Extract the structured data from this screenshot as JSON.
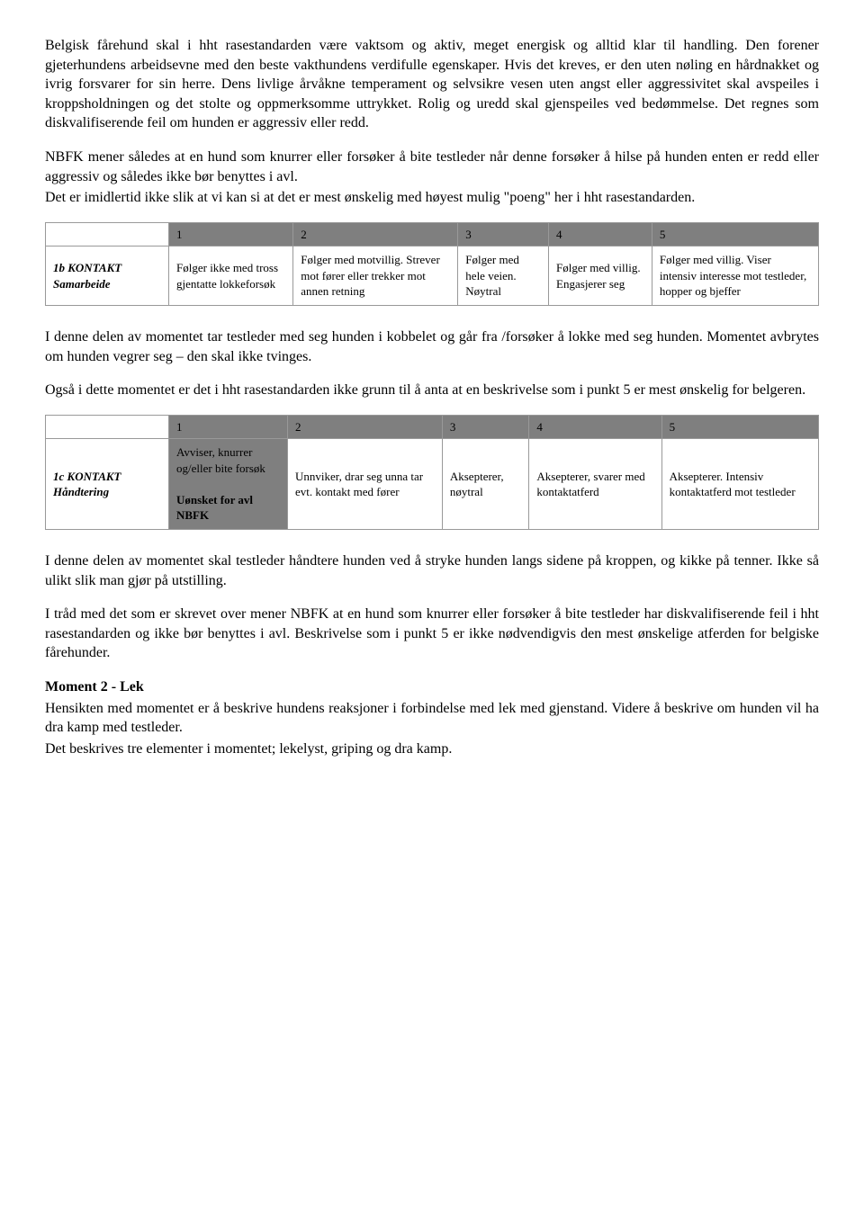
{
  "para1": "Belgisk fårehund skal i hht rasestandarden være vaktsom og aktiv, meget energisk og alltid klar til handling. Den forener gjeterhundens arbeidsevne med den beste vakthundens verdifulle egenskaper. Hvis det kreves, er den uten nøling en hårdnakket og ivrig forsvarer for sin herre. Dens livlige årvåkne temperament og selvsikre vesen uten angst eller aggressivitet skal avspeiles i kroppsholdningen og det stolte og oppmerksomme uttrykket. Rolig og uredd skal gjenspeiles ved bedømmelse. Det regnes som diskvalifiserende feil om hunden er aggressiv eller redd.",
  "para2": "NBFK mener således at en hund som knurrer eller forsøker å bite testleder når denne forsøker å hilse på hunden enten er redd eller aggressiv og således ikke bør benyttes i avl.",
  "para3": "Det er imidlertid ikke slik at vi kan si at det er mest ønskelig med høyest mulig \"poeng\" her i hht rasestandarden.",
  "table1": {
    "headers": [
      "",
      "1",
      "2",
      "3",
      "4",
      "5"
    ],
    "rowLabel": "1b KONTAKT Samarbeide",
    "cells": [
      "Følger ikke med tross gjentatte lokkeforsøk",
      "Følger med motvillig. Strever mot fører eller trekker mot annen retning",
      "Følger med hele veien. Nøytral",
      "Følger med villig. Engasjerer seg",
      "Følger med villig. Viser intensiv interesse mot testleder, hopper og bjeffer"
    ]
  },
  "para4": "I denne delen av momentet tar testleder med seg hunden i kobbelet og går fra /forsøker å lokke med seg hunden. Momentet avbrytes om hunden vegrer seg – den skal ikke tvinges.",
  "para5": "Også i dette momentet er det i hht rasestandarden ikke grunn til å anta at en beskrivelse som i punkt 5 er mest ønskelig for belgeren.",
  "table2": {
    "headers": [
      "",
      "1",
      "2",
      "3",
      "4",
      "5"
    ],
    "rowLabel": "1c KONTAKT Håndtering",
    "cell1a": "Avviser, knurrer og/eller bite forsøk",
    "cell1b": "Uønsket for avl NBFK",
    "cells": [
      "Unnviker, drar seg unna tar evt. kontakt med fører",
      "Aksepterer, nøytral",
      "Aksepterer, svarer med kontaktatferd",
      "Aksepterer. Intensiv kontaktatferd mot testleder"
    ]
  },
  "para6": "I denne delen av momentet skal testleder håndtere hunden ved å stryke hunden langs sidene på kroppen, og kikke på tenner. Ikke så ulikt slik man gjør på utstilling.",
  "para7": "I tråd med det som er skrevet over mener NBFK at en hund som knurrer eller forsøker å bite testleder har diskvalifiserende feil i hht rasestandarden og ikke bør benyttes i avl. Beskrivelse som i punkt 5 er ikke nødvendigvis den mest ønskelige atferden for belgiske fårehunder.",
  "heading2": "Moment 2 - Lek",
  "para8": "Hensikten med momentet er å beskrive hundens reaksjoner i forbindelse med lek med gjenstand. Videre å beskrive om hunden vil ha dra kamp med testleder.",
  "para9": "Det beskrives tre elementer i momentet; lekelyst, griping og dra kamp."
}
